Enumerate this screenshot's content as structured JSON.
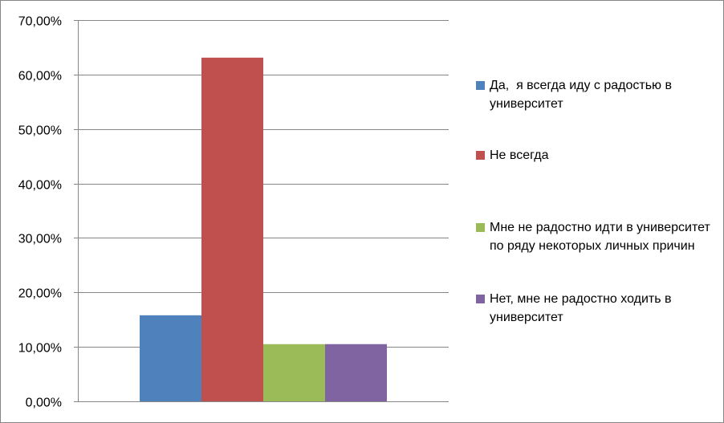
{
  "chart_data": {
    "type": "bar",
    "categories": [
      ""
    ],
    "series": [
      {
        "name": "Да,  я всегда иду с радостью в университет",
        "values": [
          15.8
        ],
        "color": "#4F81BD"
      },
      {
        "name": "Не всегда",
        "values": [
          63.1
        ],
        "color": "#C0504D"
      },
      {
        "name": "Мне не радостно идти в университет по ряду некоторых личных причин",
        "values": [
          10.5
        ],
        "color": "#9BBB59"
      },
      {
        "name": "Нет, мне не радостно ходить в университет",
        "values": [
          10.5
        ],
        "color": "#8064A2"
      }
    ],
    "ylim": [
      0,
      70
    ],
    "yticks": [
      0,
      10,
      20,
      30,
      40,
      50,
      60,
      70
    ],
    "ytick_labels": [
      "0,00%",
      "10,00%",
      "20,00%",
      "30,00%",
      "40,00%",
      "50,00%",
      "60,00%",
      "70,00%"
    ],
    "grid": true,
    "legend_position": "right",
    "title": "",
    "xlabel": "",
    "ylabel": ""
  }
}
